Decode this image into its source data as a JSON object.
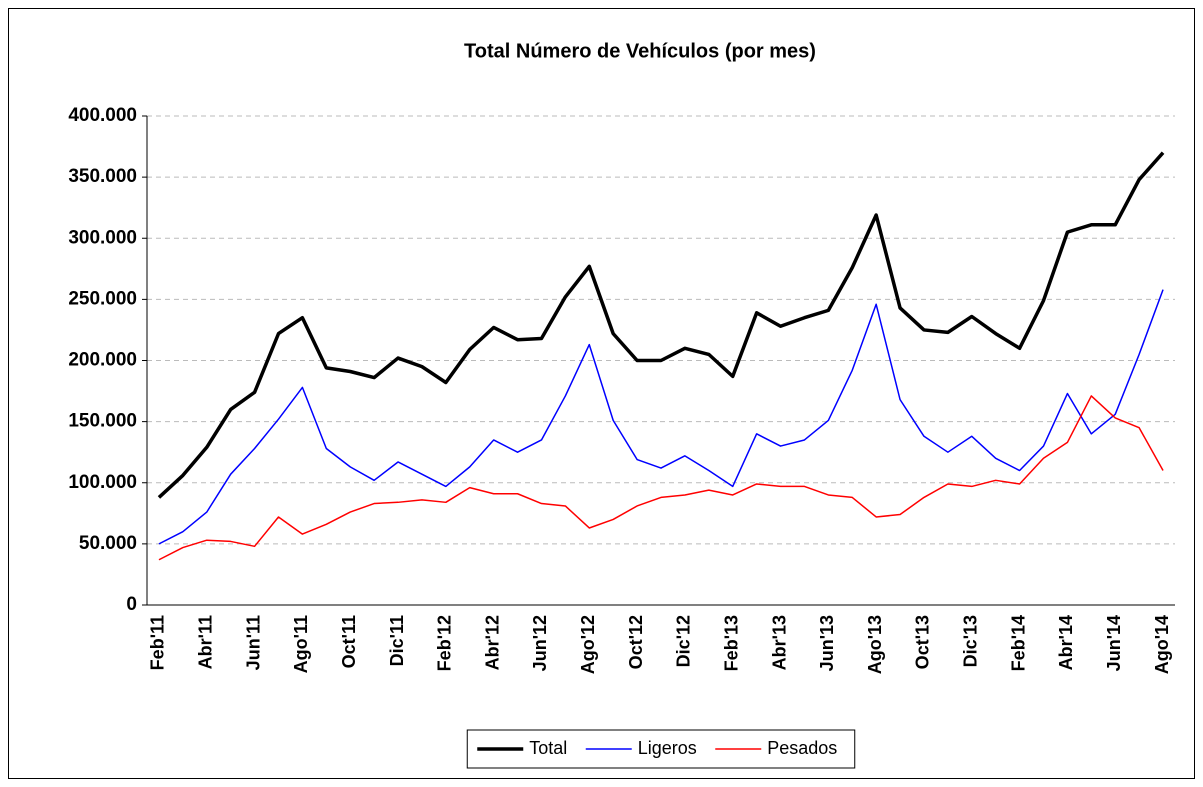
{
  "chart_data": {
    "type": "line",
    "title": "Total Número de Vehículos (por mes)",
    "categories": [
      "Feb'11",
      null,
      "Abr'11",
      null,
      "Jun'11",
      null,
      "Ago'11",
      null,
      "Oct'11",
      null,
      "Dic'11",
      null,
      "Feb'12",
      null,
      "Abr'12",
      null,
      "Jun'12",
      null,
      "Ago'12",
      null,
      "Oct'12",
      null,
      "Dic'12",
      null,
      "Feb'13",
      null,
      "Abr'13",
      null,
      "Jun'13",
      null,
      "Ago'13",
      null,
      "Oct'13",
      null,
      "Dic'13",
      null,
      "Feb'14",
      null,
      "Abr'14",
      null,
      "Jun'14",
      null,
      "Ago'14"
    ],
    "series": [
      {
        "name": "Total",
        "color": "#000000",
        "values": [
          88000,
          106000,
          129000,
          160000,
          174000,
          222000,
          235000,
          194000,
          191000,
          186000,
          202000,
          195000,
          182000,
          209000,
          227000,
          217000,
          218000,
          252000,
          277000,
          222000,
          200000,
          200000,
          210000,
          205000,
          187000,
          239000,
          228000,
          235000,
          241000,
          276000,
          319000,
          243000,
          225000,
          223000,
          236000,
          222000,
          210000,
          249000,
          305000,
          311000,
          311000,
          348000,
          370000
        ]
      },
      {
        "name": "Ligeros",
        "color": "#0000ff",
        "values": [
          50000,
          60000,
          76000,
          107000,
          128000,
          152000,
          178000,
          128000,
          113000,
          102000,
          117000,
          107000,
          97000,
          113000,
          135000,
          125000,
          135000,
          171000,
          213000,
          151000,
          119000,
          112000,
          122000,
          110000,
          97000,
          140000,
          130000,
          135000,
          151000,
          192000,
          246000,
          168000,
          138000,
          125000,
          138000,
          120000,
          110000,
          130000,
          173000,
          140000,
          156000,
          205000,
          258000
        ]
      },
      {
        "name": "Pesados",
        "color": "#ff0000",
        "values": [
          37000,
          47000,
          53000,
          52000,
          48000,
          72000,
          58000,
          66000,
          76000,
          83000,
          84000,
          86000,
          84000,
          96000,
          91000,
          91000,
          83000,
          81000,
          63000,
          70000,
          81000,
          88000,
          90000,
          94000,
          90000,
          99000,
          97000,
          97000,
          90000,
          88000,
          72000,
          74000,
          88000,
          99000,
          97000,
          102000,
          99000,
          120000,
          133000,
          171000,
          153000,
          145000,
          110000
        ]
      }
    ],
    "ylim": [
      0,
      400000
    ],
    "yticks": [
      0,
      {
        "value": 50000,
        "label": "50.000"
      },
      {
        "value": 100000,
        "label": "100.000"
      },
      {
        "value": 150000,
        "label": "150.000"
      },
      {
        "value": 200000,
        "label": "200.000"
      },
      {
        "value": 250000,
        "label": "250.000"
      },
      {
        "value": 300000,
        "label": "300.000"
      },
      {
        "value": 350000,
        "label": "350.000"
      },
      {
        "value": 400000,
        "label": "400.000"
      }
    ],
    "grid": true,
    "legend": "bottom"
  }
}
